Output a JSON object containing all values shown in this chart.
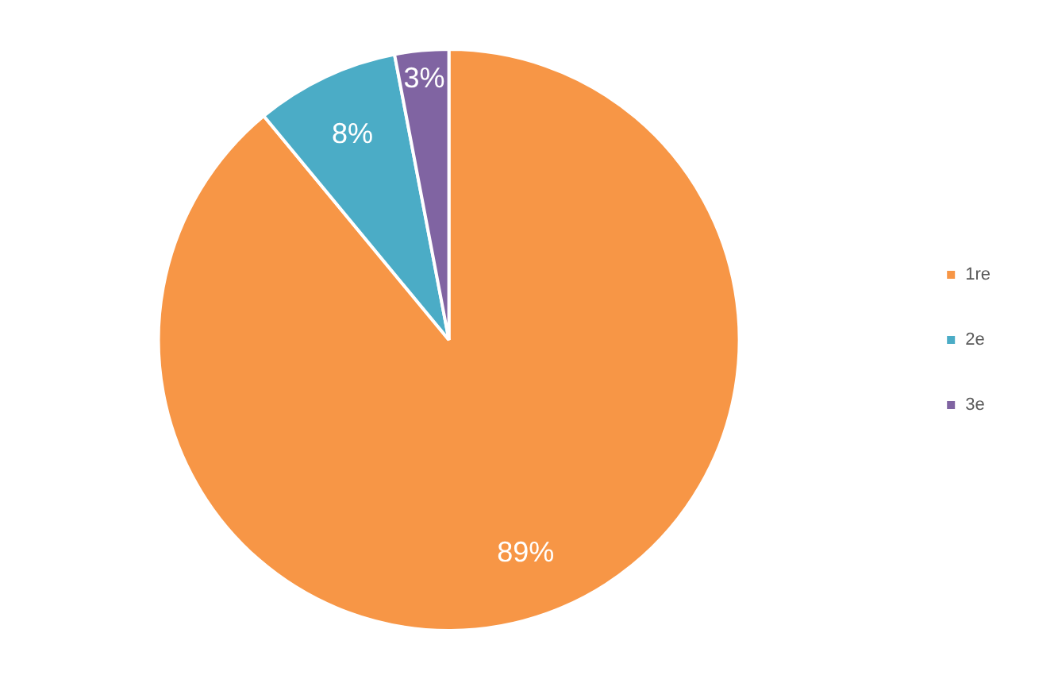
{
  "chart_data": {
    "type": "pie",
    "categories": [
      "1re",
      "2e",
      "3e"
    ],
    "values": [
      89,
      8,
      3
    ],
    "colors": [
      "#f79646",
      "#4bacc6",
      "#8064a2"
    ],
    "value_labels": [
      "89%",
      "8%",
      "3%"
    ],
    "legend": "right"
  }
}
